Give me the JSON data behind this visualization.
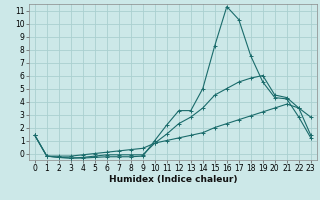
{
  "xlabel": "Humidex (Indice chaleur)",
  "ylabel": "",
  "background_color": "#cce8e8",
  "grid_color": "#aad0d0",
  "line_color": "#1a6b6b",
  "x_values": [
    0,
    1,
    2,
    3,
    4,
    5,
    6,
    7,
    8,
    9,
    10,
    11,
    12,
    13,
    14,
    15,
    16,
    17,
    18,
    19,
    20,
    21,
    22,
    23
  ],
  "line1": [
    1.4,
    -0.2,
    -0.3,
    -0.35,
    -0.35,
    -0.3,
    -0.25,
    -0.25,
    -0.25,
    -0.2,
    1.0,
    2.2,
    3.3,
    3.3,
    5.0,
    8.3,
    11.3,
    10.3,
    7.5,
    5.5,
    4.3,
    4.2,
    2.8,
    1.2
  ],
  "line2": [
    1.4,
    -0.2,
    -0.3,
    -0.35,
    -0.3,
    -0.2,
    -0.1,
    -0.1,
    -0.1,
    -0.1,
    0.8,
    1.5,
    2.3,
    2.8,
    3.5,
    4.5,
    5.0,
    5.5,
    5.8,
    6.0,
    4.5,
    4.3,
    3.5,
    2.8
  ],
  "line3": [
    1.4,
    -0.2,
    -0.2,
    -0.2,
    -0.1,
    0.0,
    0.1,
    0.2,
    0.3,
    0.4,
    0.8,
    1.0,
    1.2,
    1.4,
    1.6,
    2.0,
    2.3,
    2.6,
    2.9,
    3.2,
    3.5,
    3.8,
    3.5,
    1.4
  ],
  "ylim": [
    -0.5,
    11.5
  ],
  "xlim": [
    -0.5,
    23.5
  ],
  "yticks": [
    0,
    1,
    2,
    3,
    4,
    5,
    6,
    7,
    8,
    9,
    10,
    11
  ],
  "xticks": [
    0,
    1,
    2,
    3,
    4,
    5,
    6,
    7,
    8,
    9,
    10,
    11,
    12,
    13,
    14,
    15,
    16,
    17,
    18,
    19,
    20,
    21,
    22,
    23
  ],
  "xlabel_fontsize": 6.5,
  "tick_fontsize": 5.5
}
